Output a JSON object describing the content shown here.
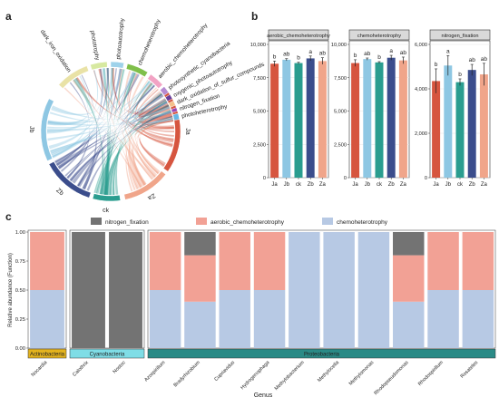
{
  "panel_labels": [
    "a",
    "b",
    "c"
  ],
  "chart_data": [
    {
      "type": "chord",
      "sectors": [
        {
          "name": "Ja",
          "color": "#d6553f"
        },
        {
          "name": "Za",
          "color": "#f0a58a"
        },
        {
          "name": "ck",
          "color": "#2a9d8f"
        },
        {
          "name": "Zb",
          "color": "#3b4d8c"
        },
        {
          "name": "Jb",
          "color": "#8ec7e3"
        },
        {
          "name": "dark_iron_oxidation",
          "color": "#e9e2a6"
        },
        {
          "name": "phototrophy",
          "color": "#d7e9a0"
        },
        {
          "name": "photoautotrophy",
          "color": "#9ed2ea"
        },
        {
          "name": "chemoheterotrophy",
          "color": "#7fbf4a"
        },
        {
          "name": "aerobic_chemoheterotrophy",
          "color": "#f2a3c4"
        },
        {
          "name": "photosynthetic_cyanobacteria",
          "color": "#b58ad1"
        },
        {
          "name": "oxygenic_photoautotrophy",
          "color": "#6a3d9a"
        },
        {
          "name": "dark_oxidation_of_sulfur_compounds",
          "color": "#f4c08a"
        },
        {
          "name": "nitrogen_fixation",
          "color": "#9a47b4"
        },
        {
          "name": "photoheterotrophy",
          "color": "#66b7e6"
        }
      ]
    },
    {
      "type": "bar",
      "categories": [
        "Ja",
        "Jb",
        "ck",
        "Zb",
        "Za"
      ],
      "colors": [
        "#d6553f",
        "#8ec7e3",
        "#2a9d8f",
        "#3b4d8c",
        "#f0a58a"
      ],
      "panels": [
        {
          "title": "aerobic_chemoheterotrophy",
          "ylim": [
            0,
            10000
          ],
          "yticks": [
            "0",
            "2,500",
            "5,000",
            "7,500",
            "10,000"
          ],
          "values": [
            8550,
            8850,
            8600,
            8950,
            8750
          ],
          "errors": [
            200,
            80,
            60,
            180,
            250
          ],
          "letters": [
            "b",
            "ab",
            "b",
            "a",
            "ab"
          ]
        },
        {
          "title": "chemoheterotrophy",
          "ylim": [
            0,
            10000
          ],
          "yticks": [
            "0",
            "2,500",
            "5,000",
            "7,500",
            "10,000"
          ],
          "values": [
            8600,
            8900,
            8650,
            9000,
            8800
          ],
          "errors": [
            250,
            80,
            60,
            180,
            250
          ],
          "letters": [
            "b",
            "ab",
            "b",
            "a",
            "ab"
          ]
        },
        {
          "title": "nitrogen_fixation",
          "ylim": [
            0,
            6000
          ],
          "yticks": [
            "0",
            "2,000",
            "4,000",
            "6,000"
          ],
          "values": [
            4350,
            5050,
            4300,
            4850,
            4650
          ],
          "errors": [
            550,
            450,
            150,
            250,
            500
          ],
          "letters": [
            "b",
            "a",
            "b",
            "ab",
            "ab"
          ]
        }
      ]
    },
    {
      "type": "stacked_bar",
      "legend": [
        "nitrogen_fixation",
        "aerobic_chemoheterotrophy",
        "chemoheterotrophy"
      ],
      "legend_colors": [
        "#737373",
        "#f2a195",
        "#b7c9e4"
      ],
      "ylabel": "Relative abundance (Function)",
      "xlabel": "Genus",
      "yticks": [
        "0.00",
        "0.25",
        "0.50",
        "0.75",
        "1.00"
      ],
      "ylim": [
        0,
        1
      ],
      "groups": [
        {
          "name": "Actinobacteria",
          "color": "#e3b31f",
          "genera": [
            {
              "name": "Nocardia",
              "n": 0,
              "a": 0.5,
              "c": 0.5
            }
          ]
        },
        {
          "name": "Cyanobacteria",
          "color": "#7fdde6",
          "genera": [
            {
              "name": "Calothrix",
              "n": 1,
              "a": 0,
              "c": 0
            },
            {
              "name": "Nostoc",
              "n": 1,
              "a": 0,
              "c": 0
            }
          ]
        },
        {
          "name": "Proteobacteria",
          "color": "#2a8a86",
          "genera": [
            {
              "name": "Azospirillum",
              "n": 0,
              "a": 0.5,
              "c": 0.5
            },
            {
              "name": "Bradyrhizobium",
              "n": 0.2,
              "a": 0.4,
              "c": 0.4
            },
            {
              "name": "Cupriavidus",
              "n": 0,
              "a": 0.5,
              "c": 0.5
            },
            {
              "name": "Hydrogenophaga",
              "n": 0,
              "a": 0.5,
              "c": 0.5
            },
            {
              "name": "Methylobacterium",
              "n": 0,
              "a": 0,
              "c": 1
            },
            {
              "name": "Methylocella",
              "n": 0,
              "a": 0,
              "c": 1
            },
            {
              "name": "Methylomonas",
              "n": 0,
              "a": 0,
              "c": 1
            },
            {
              "name": "Rhodopseudomonas",
              "n": 0.2,
              "a": 0.4,
              "c": 0.4
            },
            {
              "name": "Rhodospirillum",
              "n": 0,
              "a": 0.5,
              "c": 0.5
            },
            {
              "name": "Rosateles",
              "n": 0,
              "a": 0.5,
              "c": 0.5
            }
          ]
        }
      ]
    }
  ]
}
